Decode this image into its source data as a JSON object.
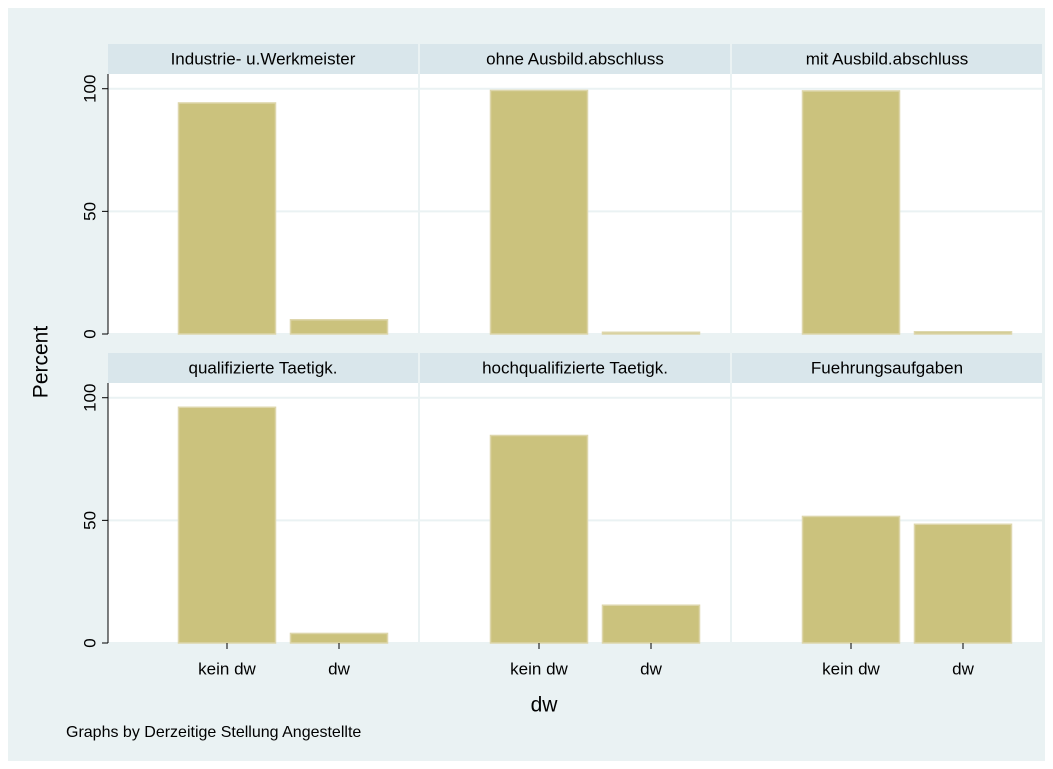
{
  "ylabel": "Percent",
  "xlabel": "dw",
  "note": "Graphs by Derzeitige Stellung Angestellte",
  "chart_data": [
    {
      "type": "bar",
      "title": "Industrie- u.Werkmeister",
      "categories": [
        "kein dw",
        "dw"
      ],
      "values": [
        94.2,
        5.8
      ],
      "color": "#cbc27d",
      "ylim": [
        0,
        106
      ],
      "yticks": [
        0,
        50,
        100
      ],
      "grid": true
    },
    {
      "type": "bar",
      "title": "ohne Ausbild.abschluss",
      "categories": [
        "kein dw",
        "dw"
      ],
      "values": [
        99.3,
        0.7
      ],
      "color": "#cbc27d",
      "ylim": [
        0,
        106
      ],
      "yticks": [
        0,
        50,
        100
      ],
      "grid": true
    },
    {
      "type": "bar",
      "title": "mit Ausbild.abschluss",
      "categories": [
        "kein dw",
        "dw"
      ],
      "values": [
        99.1,
        0.9
      ],
      "color": "#cbc27d",
      "ylim": [
        0,
        106
      ],
      "yticks": [
        0,
        50,
        100
      ],
      "grid": true
    },
    {
      "type": "bar",
      "title": "qualifizierte Taetigk.",
      "categories": [
        "kein dw",
        "dw"
      ],
      "values": [
        96.1,
        3.9
      ],
      "color": "#cbc27d",
      "ylim": [
        0,
        106
      ],
      "yticks": [
        0,
        50,
        100
      ],
      "grid": true
    },
    {
      "type": "bar",
      "title": "hochqualifizierte Taetigk.",
      "categories": [
        "kein dw",
        "dw"
      ],
      "values": [
        84.6,
        15.4
      ],
      "color": "#cbc27d",
      "ylim": [
        0,
        106
      ],
      "yticks": [
        0,
        50,
        100
      ],
      "grid": true
    },
    {
      "type": "bar",
      "title": "Fuehrungsaufgaben",
      "categories": [
        "kein dw",
        "dw"
      ],
      "values": [
        51.6,
        48.4
      ],
      "color": "#cbc27d",
      "ylim": [
        0,
        106
      ],
      "yticks": [
        0,
        50,
        100
      ],
      "grid": true
    }
  ]
}
